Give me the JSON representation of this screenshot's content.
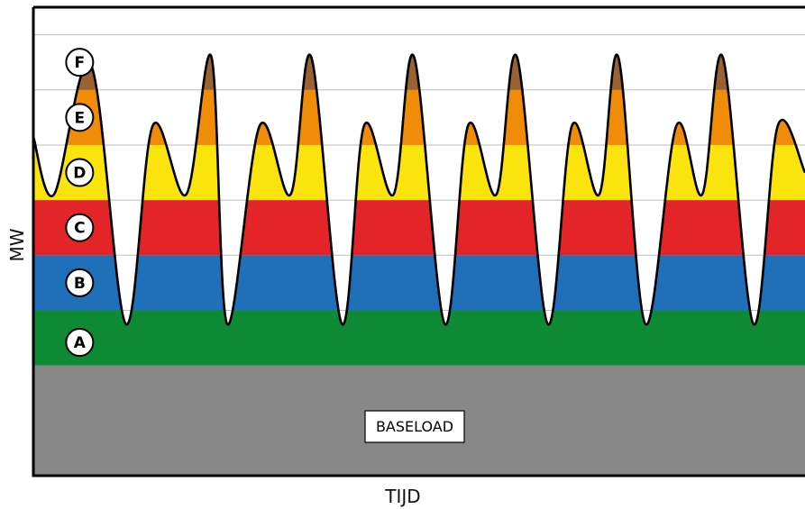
{
  "chart_data": {
    "type": "area",
    "title": "",
    "xlabel": "TIJD",
    "ylabel": "MW",
    "ylim": [
      0,
      8.5
    ],
    "grid": true,
    "baseload": {
      "label": "BASELOAD",
      "value": 2,
      "color": "#878787"
    },
    "bands": [
      {
        "name": "A",
        "from": 2,
        "to": 3,
        "color": "#0e8a34"
      },
      {
        "name": "B",
        "from": 3,
        "to": 4,
        "color": "#1f6fb9"
      },
      {
        "name": "C",
        "from": 4,
        "to": 5,
        "color": "#e3252a"
      },
      {
        "name": "D",
        "from": 5,
        "to": 6,
        "color": "#fbe30e"
      },
      {
        "name": "E",
        "from": 6,
        "to": 7,
        "color": "#f08c08"
      },
      {
        "name": "F",
        "from": 7,
        "to": 8,
        "color": "#9a6133"
      }
    ],
    "demand_curve": {
      "x": [
        0,
        0.4,
        1.12,
        1.8,
        2.32,
        2.97,
        3.46,
        3.77,
        4.4,
        5.0,
        5.4,
        6.0,
        6.43,
        7.0,
        7.4,
        8.0,
        8.45,
        9.0,
        9.4,
        10.0,
        10.47,
        11.0,
        11.37,
        11.9,
        12.5,
        13.0,
        13.4,
        14.0,
        14.47,
        15.0
      ],
      "y": [
        6.15,
        5.1,
        7.45,
        2.75,
        6.35,
        5.1,
        7.6,
        2.75,
        6.35,
        5.1,
        7.6,
        2.75,
        6.35,
        5.1,
        7.6,
        2.75,
        6.35,
        5.1,
        7.6,
        2.75,
        6.35,
        5.1,
        7.6,
        2.75,
        6.35,
        5.1,
        7.6,
        2.75,
        6.35,
        5.5
      ]
    },
    "xlim": [
      0,
      15
    ]
  }
}
